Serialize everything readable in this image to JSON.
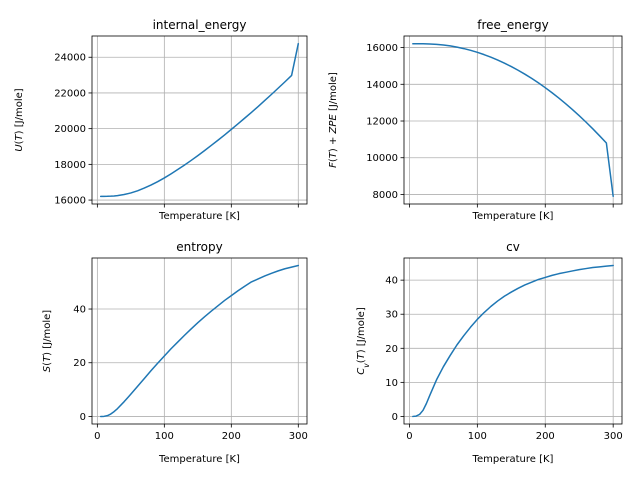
{
  "figure": {
    "background": "#ffffff",
    "line_color": "#1f77b4"
  },
  "chart_data": [
    {
      "type": "line",
      "title": "internal_energy",
      "xlabel": "Temperature [K]",
      "ylabel": "U(T) [J/mole]",
      "x": [
        5,
        10,
        15,
        20,
        25,
        30,
        40,
        50,
        60,
        70,
        80,
        90,
        100,
        110,
        120,
        130,
        140,
        150,
        160,
        170,
        180,
        190,
        200,
        210,
        220,
        230,
        240,
        250,
        260,
        270,
        280,
        290,
        300
      ],
      "y": [
        16210,
        16210,
        16212,
        16218,
        16230,
        16250,
        16310,
        16400,
        16520,
        16670,
        16840,
        17030,
        17240,
        17470,
        17710,
        17960,
        18220,
        18490,
        18770,
        19060,
        19350,
        19650,
        19960,
        20270,
        20590,
        20910,
        21240,
        21580,
        21920,
        22270,
        22620,
        22980,
        24760
      ],
      "xlim": [
        -8,
        313
      ],
      "ylim": [
        15780,
        25190
      ],
      "xticks": [
        0,
        100,
        200,
        300
      ],
      "yticks": [
        16000,
        18000,
        20000,
        22000,
        24000
      ],
      "show_xtick_labels": false,
      "grid": true
    },
    {
      "type": "line",
      "title": "free_energy",
      "xlabel": "Temperature [K]",
      "ylabel": "F(T) + ZPE [J/mole]",
      "x": [
        5,
        10,
        15,
        20,
        25,
        30,
        40,
        50,
        60,
        70,
        80,
        90,
        100,
        110,
        120,
        130,
        140,
        150,
        160,
        170,
        180,
        190,
        200,
        210,
        220,
        230,
        240,
        250,
        260,
        270,
        280,
        290,
        300
      ],
      "y": [
        16210,
        16210,
        16209,
        16207,
        16203,
        16196,
        16175,
        16140,
        16090,
        16025,
        15945,
        15850,
        15740,
        15615,
        15475,
        15320,
        15150,
        14965,
        14765,
        14550,
        14320,
        14075,
        13815,
        13540,
        13250,
        12945,
        12625,
        12290,
        11940,
        11575,
        11195,
        10800,
        7900
      ],
      "xlim": [
        -8,
        313
      ],
      "ylim": [
        7480,
        16630
      ],
      "xticks": [
        0,
        100,
        200,
        300
      ],
      "yticks": [
        8000,
        10000,
        12000,
        14000,
        16000
      ],
      "show_xtick_labels": false,
      "grid": true
    },
    {
      "type": "line",
      "title": "entropy",
      "xlabel": "Temperature [K]",
      "ylabel": "S(T) [J/mole]",
      "x": [
        5,
        10,
        15,
        20,
        25,
        30,
        40,
        50,
        60,
        70,
        80,
        90,
        100,
        110,
        120,
        130,
        140,
        150,
        160,
        170,
        180,
        190,
        200,
        210,
        220,
        230,
        240,
        250,
        260,
        270,
        280,
        290,
        300
      ],
      "y": [
        0.0,
        0.05,
        0.3,
        0.9,
        1.8,
        2.9,
        5.5,
        8.3,
        11.2,
        14.1,
        17.0,
        19.8,
        22.5,
        25.2,
        27.7,
        30.2,
        32.6,
        34.9,
        37.1,
        39.2,
        41.2,
        43.2,
        45.0,
        46.8,
        48.5,
        50.1,
        51.2,
        52.3,
        53.3,
        54.2,
        55.0,
        55.6,
        56.2
      ],
      "xlim": [
        -8,
        313
      ],
      "ylim": [
        -2.81,
        59.0
      ],
      "xticks": [
        0,
        100,
        200,
        300
      ],
      "yticks": [
        0,
        20,
        40
      ],
      "show_xtick_labels": true,
      "grid": true
    },
    {
      "type": "line",
      "title": "cv",
      "xlabel": "Temperature [K]",
      "ylabel": "Cv(T) [J/mole]",
      "x": [
        5,
        10,
        15,
        20,
        25,
        30,
        40,
        50,
        60,
        70,
        80,
        90,
        100,
        110,
        120,
        130,
        140,
        150,
        160,
        170,
        180,
        190,
        200,
        210,
        220,
        230,
        240,
        250,
        260,
        270,
        280,
        290,
        300
      ],
      "y": [
        0.0,
        0.1,
        0.6,
        1.8,
        3.8,
        6.2,
        10.8,
        14.6,
        17.9,
        21.0,
        23.7,
        26.2,
        28.5,
        30.5,
        32.3,
        33.9,
        35.3,
        36.5,
        37.6,
        38.6,
        39.4,
        40.2,
        40.8,
        41.4,
        41.9,
        42.3,
        42.7,
        43.1,
        43.4,
        43.7,
        43.9,
        44.1,
        44.3
      ],
      "xlim": [
        -8,
        313
      ],
      "ylim": [
        -2.22,
        46.5
      ],
      "xticks": [
        0,
        100,
        200,
        300
      ],
      "yticks": [
        0,
        10,
        20,
        30,
        40
      ],
      "show_xtick_labels": true,
      "grid": true
    }
  ]
}
